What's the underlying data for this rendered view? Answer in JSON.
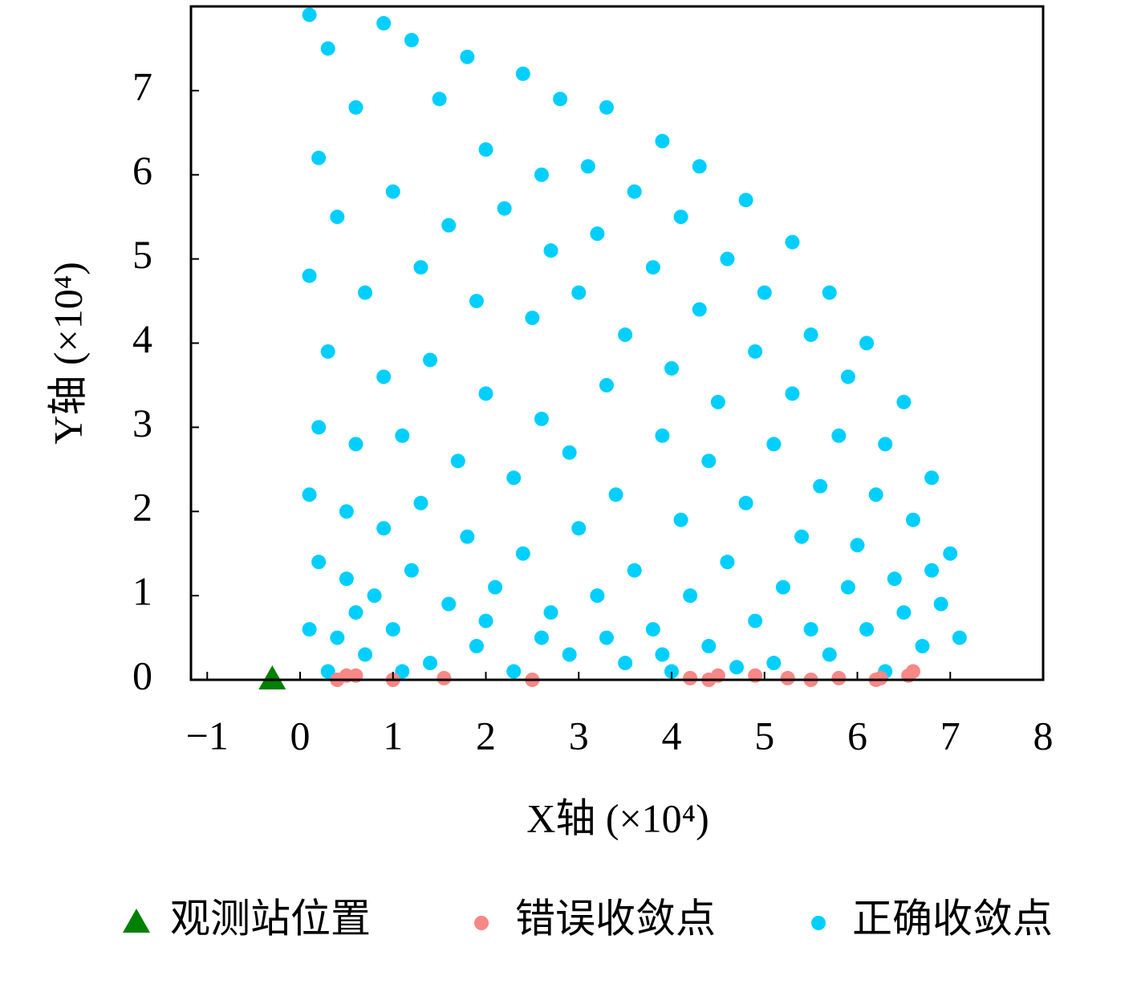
{
  "chart_data": {
    "type": "scatter",
    "xlabel": "X轴 (×10⁴)",
    "ylabel": "Y轴 (×10⁴)",
    "xlim": [
      -1.175,
      8
    ],
    "ylim": [
      0,
      8
    ],
    "xticks": [
      {
        "value": -1,
        "label": "−1"
      },
      0,
      1,
      2,
      3,
      4,
      5,
      6,
      7,
      8
    ],
    "yticks": [
      0,
      1,
      2,
      3,
      4,
      5,
      6,
      7
    ],
    "legend": "bottom",
    "series": [
      {
        "name": "观测站位置",
        "color": "#008000",
        "marker": "triangle",
        "x": [
          -0.3
        ],
        "y": [
          0
        ]
      },
      {
        "name": "错误收敛点",
        "color": "#f88787",
        "marker": "circle",
        "x": [
          0.4,
          0.5,
          0.6,
          1.0,
          1.55,
          2.5,
          4.2,
          4.4,
          4.5,
          4.9,
          5.25,
          5.5,
          5.8,
          6.2,
          6.25,
          6.55,
          6.6
        ],
        "y": [
          0.0,
          0.05,
          0.05,
          0.0,
          0.02,
          0.0,
          0.02,
          0.0,
          0.05,
          0.05,
          0.02,
          0.0,
          0.02,
          0.0,
          0.02,
          0.05,
          0.1
        ]
      },
      {
        "name": "正确收敛点",
        "color": "#00cfff",
        "marker": "circle",
        "x": [
          0.1,
          0.3,
          0.9,
          1.2,
          1.8,
          2.4,
          2.8,
          3.3,
          3.9,
          4.3,
          4.8,
          5.3,
          5.7,
          6.1,
          6.5,
          6.8,
          7.0,
          7.1,
          6.9,
          0.2,
          0.6,
          1.5,
          2.0,
          2.6,
          3.1,
          3.6,
          4.1,
          4.6,
          5.0,
          5.5,
          5.9,
          6.3,
          6.6,
          6.7,
          0.4,
          1.0,
          1.6,
          2.2,
          2.7,
          3.2,
          3.8,
          4.3,
          4.9,
          5.3,
          5.8,
          6.2,
          6.4,
          0.1,
          0.7,
          1.3,
          1.9,
          2.5,
          3.0,
          3.5,
          4.0,
          4.5,
          5.1,
          5.6,
          6.0,
          6.1,
          0.3,
          0.9,
          1.4,
          2.0,
          2.6,
          3.3,
          3.9,
          4.4,
          4.8,
          5.4,
          5.9,
          5.7,
          0.2,
          0.6,
          1.1,
          1.7,
          2.3,
          2.9,
          3.4,
          4.1,
          4.6,
          5.2,
          5.5,
          0.1,
          0.5,
          0.9,
          1.3,
          1.8,
          2.4,
          3.0,
          3.6,
          4.2,
          4.9,
          5.1,
          0.2,
          0.5,
          0.8,
          1.2,
          1.6,
          2.1,
          2.7,
          3.2,
          3.8,
          4.4,
          4.7,
          0.1,
          0.4,
          0.7,
          1.0,
          1.4,
          1.9,
          2.3,
          2.9,
          3.5,
          4.0,
          0.3,
          0.6,
          1.1,
          2.0,
          2.6,
          3.3,
          3.9,
          6.5,
          6.8,
          6.3
        ],
        "y": [
          7.9,
          7.5,
          7.8,
          7.6,
          7.4,
          7.2,
          6.9,
          6.8,
          6.4,
          6.1,
          5.7,
          5.2,
          4.6,
          4.0,
          3.3,
          2.4,
          1.5,
          0.5,
          0.9,
          6.2,
          6.8,
          6.9,
          6.3,
          6.0,
          6.1,
          5.8,
          5.5,
          5.0,
          4.6,
          4.1,
          3.6,
          2.8,
          1.9,
          0.4,
          5.5,
          5.8,
          5.4,
          5.6,
          5.1,
          5.3,
          4.9,
          4.4,
          3.9,
          3.4,
          2.9,
          2.2,
          1.2,
          4.8,
          4.6,
          4.9,
          4.5,
          4.3,
          4.6,
          4.1,
          3.7,
          3.3,
          2.8,
          2.3,
          1.6,
          0.6,
          3.9,
          3.6,
          3.8,
          3.4,
          3.1,
          3.5,
          2.9,
          2.6,
          2.1,
          1.7,
          1.1,
          0.3,
          3.0,
          2.8,
          2.9,
          2.6,
          2.4,
          2.7,
          2.2,
          1.9,
          1.4,
          1.1,
          0.6,
          2.2,
          2.0,
          1.8,
          2.1,
          1.7,
          1.5,
          1.8,
          1.3,
          1.0,
          0.7,
          0.2,
          1.4,
          1.2,
          1.0,
          1.3,
          0.9,
          1.1,
          0.8,
          1.0,
          0.6,
          0.4,
          0.15,
          0.6,
          0.5,
          0.3,
          0.6,
          0.2,
          0.4,
          0.1,
          0.3,
          0.2,
          0.1,
          0.1,
          0.8,
          0.1,
          0.7,
          0.5,
          0.5,
          0.3,
          0.8,
          1.3,
          0.1
        ]
      }
    ]
  }
}
